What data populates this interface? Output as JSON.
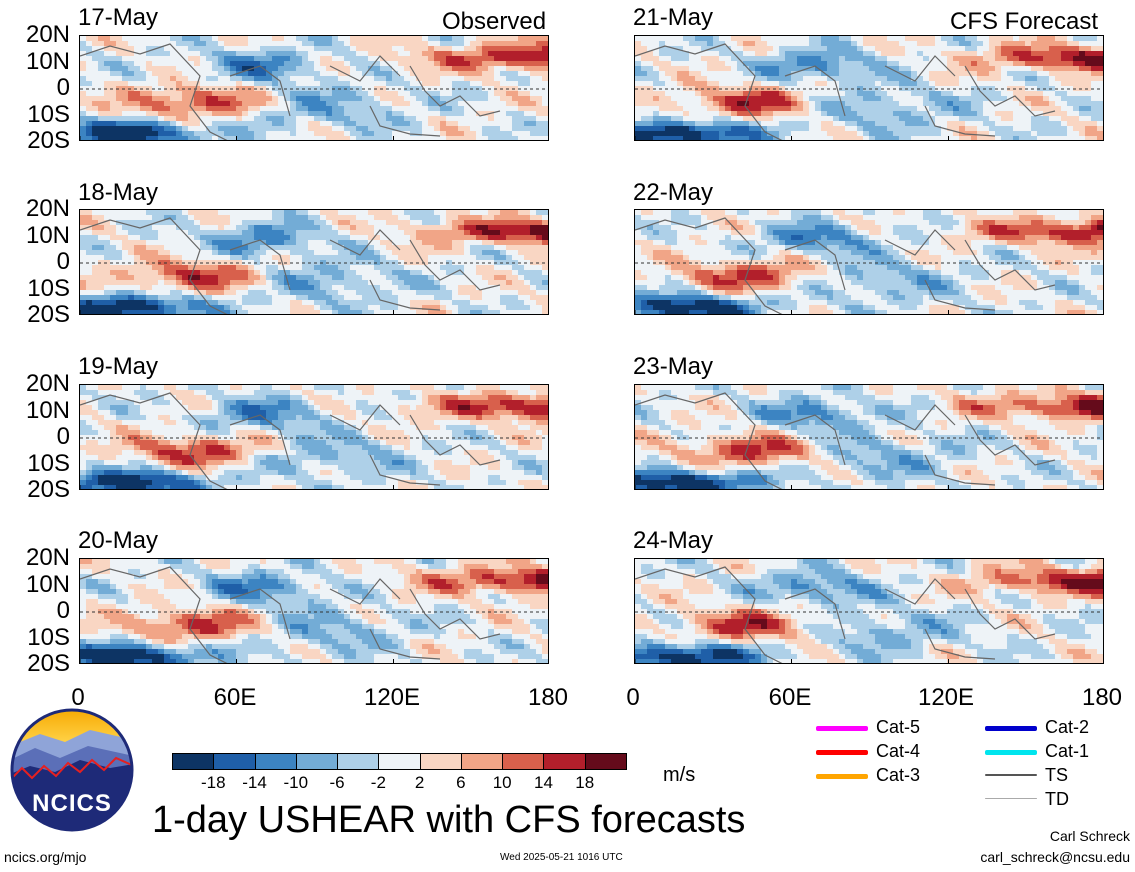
{
  "header": {
    "left_title": "Observed",
    "right_title": "CFS Forecast"
  },
  "panels": {
    "left": [
      "17-May",
      "18-May",
      "19-May",
      "20-May"
    ],
    "right": [
      "21-May",
      "22-May",
      "23-May",
      "24-May"
    ]
  },
  "axes": {
    "y_ticks": [
      "20N",
      "10N",
      "0",
      "10S",
      "20S"
    ],
    "x_ticks": [
      "0",
      "60E",
      "120E",
      "180"
    ]
  },
  "colorbar": {
    "tick_labels": [
      "-18",
      "-14",
      "-10",
      "-6",
      "-2",
      "2",
      "6",
      "10",
      "14",
      "18"
    ],
    "colors": [
      "#0d3464",
      "#1f5fa8",
      "#3c84c2",
      "#73acd6",
      "#aed0e8",
      "#eef3f7",
      "#f9d6c3",
      "#f1a587",
      "#d8604c",
      "#b21f2b",
      "#650b1b"
    ],
    "units": "m/s"
  },
  "storm_legend": [
    {
      "label": "Cat-5",
      "color": "#ff00ff"
    },
    {
      "label": "Cat-4",
      "color": "#ff0000"
    },
    {
      "label": "Cat-3",
      "color": "#ffa500"
    },
    {
      "label": "Cat-2",
      "color": "#0000cc"
    },
    {
      "label": "Cat-1",
      "color": "#00e5ee"
    },
    {
      "label": "TS",
      "color": "#555555"
    },
    {
      "label": "TD",
      "color": "#aaaaaa"
    }
  ],
  "footer": {
    "main_title": "1-day USHEAR with CFS forecasts",
    "logo_text": "NCICS",
    "left_url": "ncics.org/mjo",
    "timestamp": "Wed 2025-05-21 1016 UTC",
    "author": "Carl Schreck",
    "email": "carl_schreck@ncsu.edu"
  },
  "chart_data": {
    "type": "heatmap",
    "title": "1-day USHEAR with CFS forecasts",
    "units": "m/s",
    "x_range": [
      "0",
      "180"
    ],
    "y_range": [
      "20S",
      "20N"
    ],
    "levels": [
      -18,
      -14,
      -10,
      -6,
      -2,
      2,
      6,
      10,
      14,
      18
    ],
    "panels": [
      "17-May",
      "18-May",
      "19-May",
      "20-May",
      "21-May",
      "22-May",
      "23-May",
      "24-May"
    ]
  }
}
